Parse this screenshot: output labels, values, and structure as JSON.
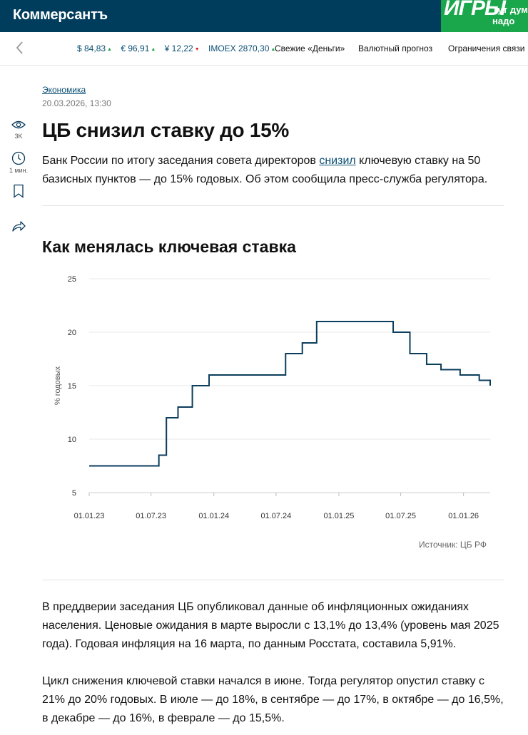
{
  "header": {
    "logo": "Коммерсантъ",
    "ad_logo": "ИГРЫ",
    "ad_text": "Тут дум\nнадо"
  },
  "nav": {
    "rates": [
      {
        "label": "$ 84,83",
        "trend": "up"
      },
      {
        "label": "€ 96,91",
        "trend": "up"
      },
      {
        "label": "¥ 12,22",
        "trend": "down"
      },
      {
        "label": "IMOEX 2870,30",
        "trend": "up"
      }
    ],
    "links": [
      "Свежие «Деньги»",
      "Валютный прогноз",
      "Ограничения связи"
    ]
  },
  "sidebar": {
    "views": "3K",
    "read_time": "1 мин."
  },
  "article": {
    "rubric": "Экономика",
    "date": "20.03.2026, 13:30",
    "title": "ЦБ снизил ставку до 15%",
    "lead_before": "Банк России по итогу заседания совета директоров ",
    "lead_link": "снизил",
    "lead_after": " ключевую ставку на 50 базисных пунктов — до 15% годовых. Об этом сообщила пресс-служба регулятора.",
    "chart_heading": "Как менялась ключевая ставка",
    "source": "Источник: ЦБ РФ",
    "paragraph1": "В преддверии заседания ЦБ опубликовал данные об инфляционных ожиданиях населения. Ценовые ожидания в марте выросли с 13,1% до 13,4% (уровень мая 2025 года). Годовая инфляция на 16 марта, по данным Росстата, составила 5,91%.",
    "paragraph2": "Цикл снижения ключевой ставки начался в июне. Тогда регулятор опустил ставку с 21% до 20% годовых. В июле — до 18%, в сентябре — до 17%, в октябре — до 16,5%, в декабре — до 16%, в феврале — до 15,5%."
  },
  "colors": {
    "brand": "#003d5c",
    "line": "#0b3d5c",
    "link": "#0a4e73",
    "up": "#21a34a",
    "down": "#d0222b",
    "ad": "#1aa64b"
  },
  "chart_data": {
    "type": "line",
    "step": true,
    "ylabel": "% годовых",
    "ylim": [
      5,
      25
    ],
    "yticks": [
      5,
      10,
      15,
      20,
      25
    ],
    "xticks": [
      "01.01.23",
      "01.07.23",
      "01.01.24",
      "01.07.24",
      "01.01.25",
      "01.07.25",
      "01.01.26"
    ],
    "xlim": [
      "2023-01-01",
      "2026-03-20"
    ],
    "grid": true,
    "series": [
      {
        "points": [
          [
            "2023-01-01",
            7.5
          ],
          [
            "2023-07-24",
            8.5
          ],
          [
            "2023-08-15",
            12
          ],
          [
            "2023-09-18",
            13
          ],
          [
            "2023-10-30",
            15
          ],
          [
            "2023-12-18",
            16
          ],
          [
            "2024-07-29",
            18
          ],
          [
            "2024-09-16",
            19
          ],
          [
            "2024-10-28",
            21
          ],
          [
            "2025-06-09",
            20
          ],
          [
            "2025-07-28",
            18
          ],
          [
            "2025-09-15",
            17
          ],
          [
            "2025-10-27",
            16.5
          ],
          [
            "2025-12-22",
            16
          ],
          [
            "2026-02-16",
            15.5
          ],
          [
            "2026-03-20",
            15
          ]
        ]
      }
    ]
  }
}
